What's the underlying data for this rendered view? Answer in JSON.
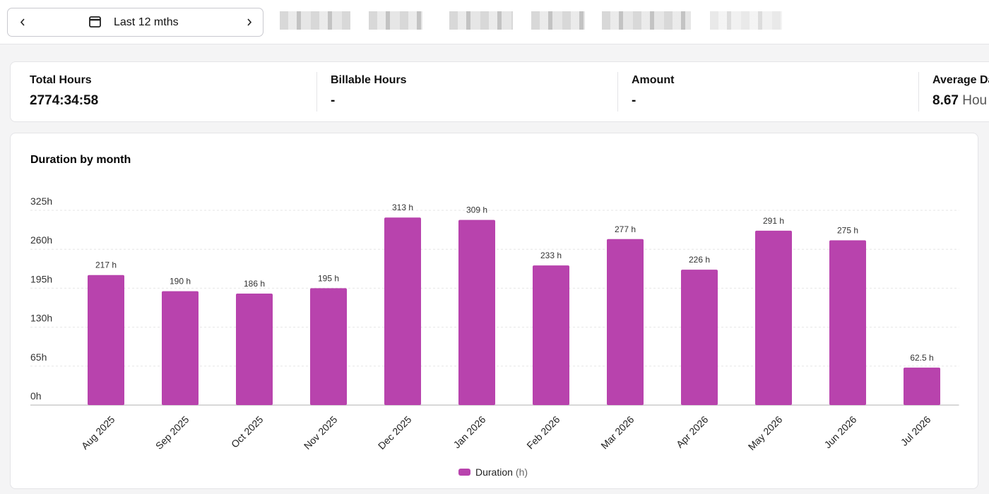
{
  "toolbar": {
    "period": "Last 12 mths"
  },
  "stats": [
    {
      "label": "Total Hours",
      "value": "2774:34:58"
    },
    {
      "label": "Billable Hours",
      "value": "-"
    },
    {
      "label": "Amount",
      "value": "-"
    },
    {
      "label": "Average Da",
      "value": "8.67",
      "unit": "Hou"
    }
  ],
  "chart_data": {
    "type": "bar",
    "title": "Duration by month",
    "categories": [
      "Aug 2025",
      "Sep 2025",
      "Oct 2025",
      "Nov 2025",
      "Dec 2025",
      "Jan 2026",
      "Feb 2026",
      "Mar 2026",
      "Apr 2026",
      "May 2026",
      "Jun 2026",
      "Jul 2026"
    ],
    "series": [
      {
        "name": "Duration",
        "color": "#b843ad",
        "values": [
          217,
          190,
          186,
          195,
          313,
          309,
          233,
          277,
          226,
          291,
          275,
          62.5
        ],
        "value_labels": [
          "217 h",
          "190 h",
          "186 h",
          "195 h",
          "313 h",
          "309 h",
          "233 h",
          "277 h",
          "226 h",
          "291 h",
          "275 h",
          "62.5 h"
        ]
      }
    ],
    "legend_unit": "(h)",
    "ylim": [
      0,
      325
    ],
    "yticks": [
      {
        "value": 0,
        "label": "0h"
      },
      {
        "value": 65,
        "label": "65h"
      },
      {
        "value": 130,
        "label": "130h"
      },
      {
        "value": 195,
        "label": "195h"
      },
      {
        "value": 260,
        "label": "260h"
      },
      {
        "value": 325,
        "label": "325h"
      }
    ],
    "grid": true
  }
}
